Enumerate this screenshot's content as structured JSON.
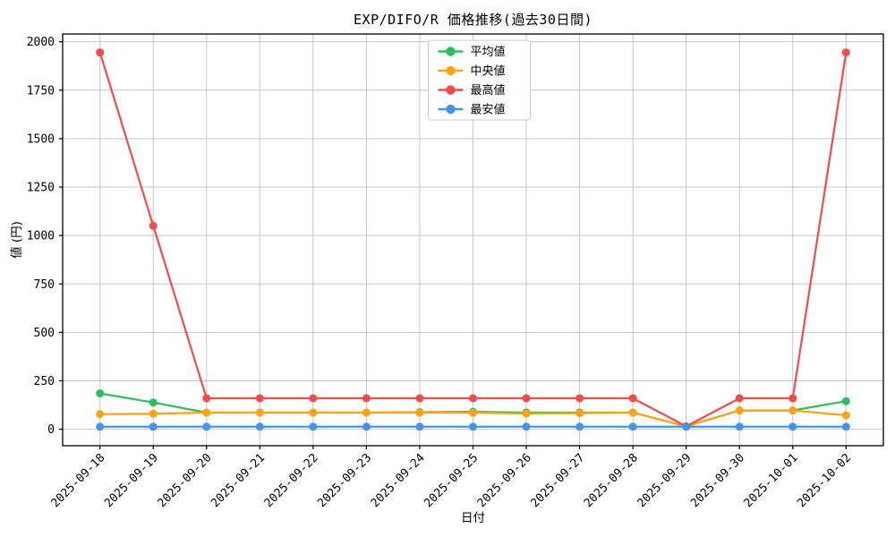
{
  "figure": {
    "title": "EXP/DIFO/R 価格推移(過去30日間)",
    "xlabel": "日付",
    "ylabel": "値 (円)"
  },
  "chart_data": {
    "type": "line",
    "title": "EXP/DIFO/R 価格推移(過去30日間)",
    "xlabel": "日付",
    "ylabel": "値 (円)",
    "grid": true,
    "legend_position": "upper center",
    "ylim": [
      -85,
      2040
    ],
    "yticks": [
      0,
      250,
      500,
      750,
      1000,
      1250,
      1500,
      1750,
      2000
    ],
    "categories": [
      "2025-09-18",
      "2025-09-19",
      "2025-09-20",
      "2025-09-21",
      "2025-09-22",
      "2025-09-23",
      "2025-09-24",
      "2025-09-25",
      "2025-09-26",
      "2025-09-27",
      "2025-09-28",
      "2025-09-29",
      "2025-09-30",
      "2025-10-01",
      "2025-10-02"
    ],
    "series": [
      {
        "name": "平均値",
        "color": "#2ebd5f",
        "values": [
          185,
          138,
          86,
          86,
          86,
          86,
          88,
          90,
          86,
          86,
          86,
          15,
          97,
          97,
          145
        ]
      },
      {
        "name": "中央値",
        "color": "#ffa215",
        "values": [
          78,
          80,
          86,
          86,
          86,
          86,
          86,
          85,
          81,
          83,
          86,
          15,
          97,
          97,
          72
        ]
      },
      {
        "name": "最高値",
        "color": "#f14c4c",
        "values": [
          1945,
          1050,
          160,
          160,
          160,
          160,
          160,
          160,
          160,
          160,
          160,
          15,
          160,
          160,
          1945
        ]
      },
      {
        "name": "最安値",
        "color": "#4295ec",
        "values": [
          13,
          13,
          13,
          13,
          13,
          13,
          13,
          13,
          13,
          13,
          13,
          13,
          13,
          13,
          13
        ]
      }
    ]
  },
  "style": {
    "grid_color": "#c6c6c6",
    "spine_color": "#000000",
    "background": "#ffffff",
    "legend_border": "#cccccc"
  }
}
